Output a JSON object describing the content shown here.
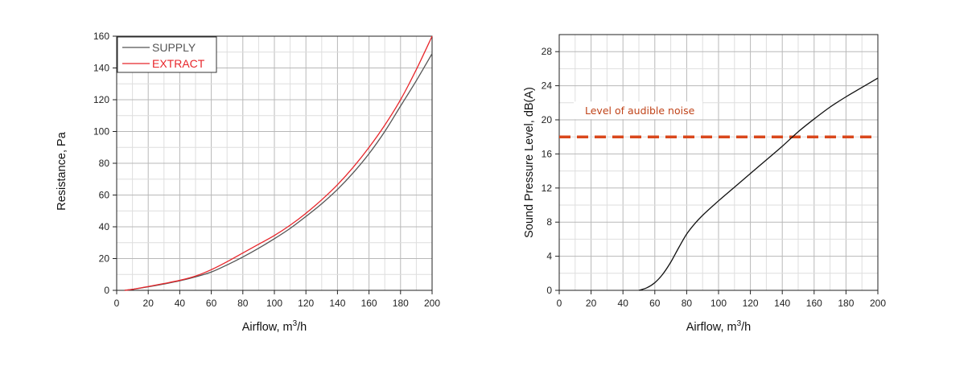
{
  "chart_data": [
    {
      "type": "line",
      "xlabel": "Airflow, m",
      "xlabel_sup": "3",
      "xlabel_suffix": "/h",
      "ylabel": "Resistance, Pa",
      "xlim": [
        0,
        200
      ],
      "ylim": [
        0,
        160
      ],
      "xticks": [
        0,
        20,
        40,
        60,
        80,
        100,
        120,
        140,
        160,
        180,
        200
      ],
      "yticks": [
        0,
        20,
        40,
        60,
        80,
        100,
        120,
        140,
        160
      ],
      "grid": true,
      "legend": "top-left",
      "series": [
        {
          "name": "SUPPLY",
          "color": "#555555",
          "x": [
            5,
            10,
            20,
            30,
            40,
            50,
            60,
            70,
            80,
            90,
            100,
            110,
            120,
            130,
            140,
            150,
            160,
            170,
            180,
            190,
            200
          ],
          "y": [
            0,
            0.6,
            2.2,
            4,
            6,
            8.5,
            11.5,
            16,
            21,
            26.5,
            32.5,
            39,
            46.5,
            54.5,
            63.5,
            74,
            86,
            100,
            116,
            132,
            149
          ]
        },
        {
          "name": "EXTRACT",
          "color": "#e8262b",
          "x": [
            5,
            10,
            20,
            30,
            40,
            50,
            60,
            70,
            80,
            90,
            100,
            110,
            120,
            130,
            140,
            150,
            160,
            170,
            180,
            190,
            200
          ],
          "y": [
            0,
            0.6,
            2.4,
            4.3,
            6.3,
            9,
            13,
            18,
            23.5,
            29,
            34.5,
            41,
            48.5,
            57,
            66.5,
            77.5,
            90,
            104,
            120,
            139,
            160
          ]
        }
      ]
    },
    {
      "type": "line",
      "xlabel": "Airflow, m",
      "xlabel_sup": "3",
      "xlabel_suffix": "/h",
      "ylabel": "Sound Pressure Level, dB(A)",
      "xlim": [
        0,
        200
      ],
      "ylim": [
        0,
        30
      ],
      "xticks": [
        0,
        20,
        40,
        60,
        80,
        100,
        120,
        140,
        160,
        180,
        200
      ],
      "yticks": [
        0,
        4,
        8,
        12,
        16,
        20,
        24,
        28
      ],
      "grid": true,
      "series": [
        {
          "color": "#111111",
          "x": [
            50,
            55,
            60,
            65,
            70,
            75,
            80,
            85,
            90,
            100,
            110,
            120,
            130,
            140,
            150,
            160,
            170,
            180,
            190,
            200
          ],
          "y": [
            0,
            0.3,
            0.9,
            1.9,
            3.3,
            5,
            6.6,
            7.8,
            8.8,
            10.5,
            12.1,
            13.7,
            15.3,
            16.9,
            18.6,
            20.1,
            21.5,
            22.7,
            23.8,
            24.9
          ]
        }
      ],
      "threshold": {
        "y": 18,
        "color": "#d9481c",
        "label": "Level of audible noise"
      }
    }
  ]
}
